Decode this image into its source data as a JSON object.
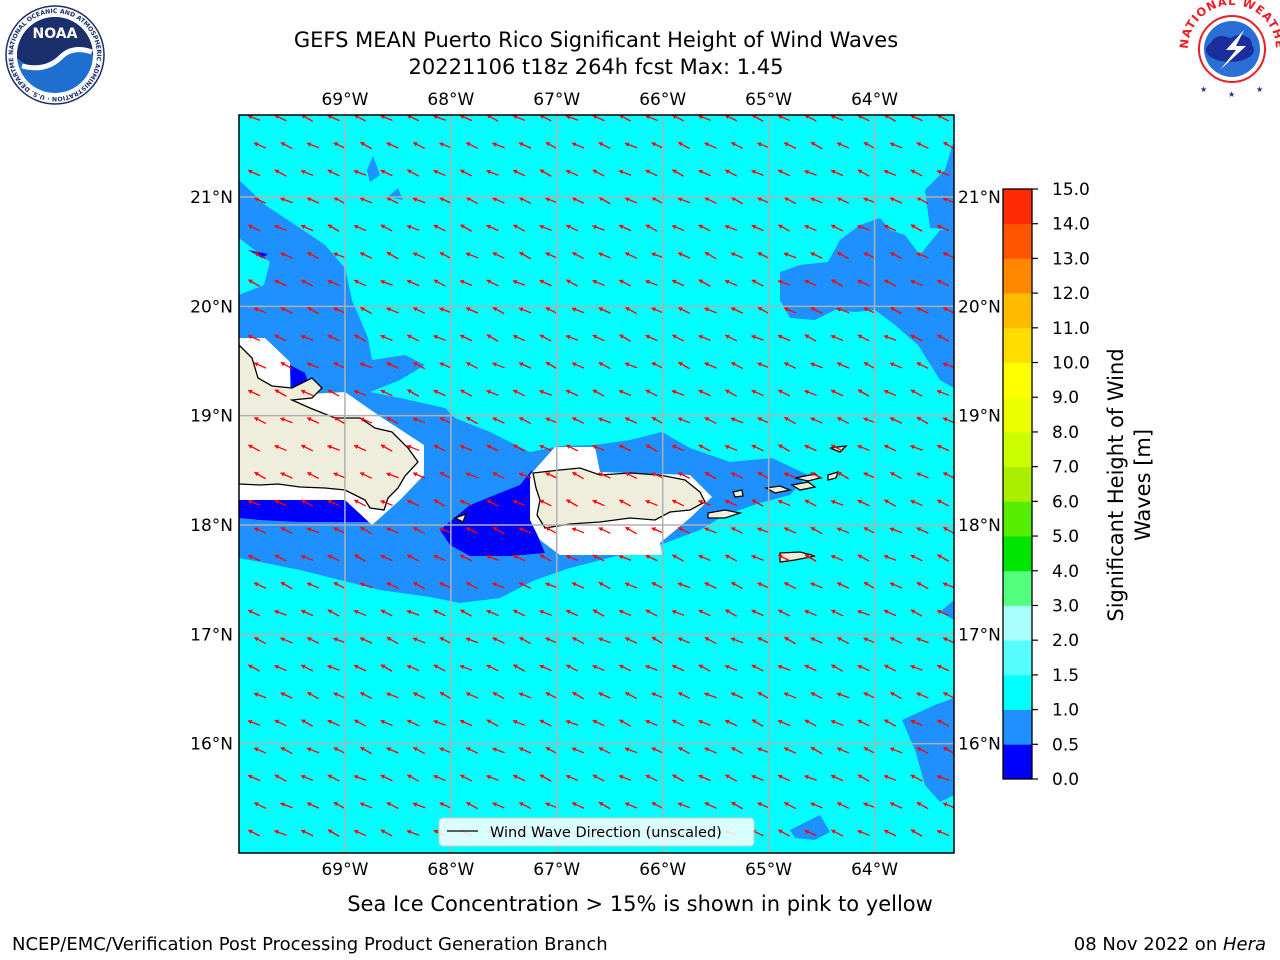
{
  "title": {
    "line1": "GEFS MEAN Puerto Rico Significant Height of Wind Waves",
    "line2": "20221106 t18z 264h fcst   Max: 1.45"
  },
  "map": {
    "lon_range": [
      -70.0,
      -63.25
    ],
    "lat_range": [
      15.0,
      21.75
    ],
    "lon_ticks": [
      {
        "value": -69,
        "label": "69°W"
      },
      {
        "value": -68,
        "label": "68°W"
      },
      {
        "value": -67,
        "label": "67°W"
      },
      {
        "value": -66,
        "label": "66°W"
      },
      {
        "value": -65,
        "label": "65°W"
      },
      {
        "value": -64,
        "label": "64°W"
      }
    ],
    "lat_ticks": [
      {
        "value": 21,
        "label": "21°N"
      },
      {
        "value": 20,
        "label": "20°N"
      },
      {
        "value": 19,
        "label": "19°N"
      },
      {
        "value": 18,
        "label": "18°N"
      },
      {
        "value": 17,
        "label": "17°N"
      },
      {
        "value": 16,
        "label": "16°N"
      }
    ],
    "grid": true,
    "arrow_color": "#ff0000",
    "wave_direction_note": "predominantly toward the southwest",
    "colors": {
      "land": "#efeedd",
      "ocean_base": "#00ffff",
      "band_0_5_1_0": "#1e90ff",
      "band_0_0_0_5": "#0000ff"
    }
  },
  "legend": {
    "label": "Wind Wave Direction (unscaled)",
    "location": "lower center"
  },
  "colorbar": {
    "label_line1": "Significant Height of Wind",
    "label_line2": "Waves [m]",
    "levels": [
      0.0,
      0.5,
      1.0,
      1.5,
      2.0,
      3.0,
      4.0,
      5.0,
      6.0,
      7.0,
      8.0,
      9.0,
      10.0,
      11.0,
      12.0,
      13.0,
      14.0,
      15.0
    ],
    "tick_labels": [
      "0.0",
      "0.5",
      "1.0",
      "1.5",
      "2.0",
      "3.0",
      "4.0",
      "5.0",
      "6.0",
      "7.0",
      "8.0",
      "9.0",
      "10.0",
      "11.0",
      "12.0",
      "13.0",
      "14.0",
      "15.0"
    ],
    "colors": [
      "#0000ff",
      "#1e90ff",
      "#00ffff",
      "#55ffff",
      "#aaffff",
      "#55ff80",
      "#00e600",
      "#55ee00",
      "#aaee00",
      "#ccff00",
      "#eeff00",
      "#ffff00",
      "#ffdd00",
      "#ffbb00",
      "#ff8800",
      "#ff5500",
      "#ff2a00"
    ]
  },
  "note": "Sea Ice Concentration > 15% is shown in pink to yellow",
  "footer": {
    "left": "NCEP/EMC/Verification Post Processing Product Generation Branch",
    "right_prefix": "08 Nov 2022 on ",
    "right_machine": "Hera"
  },
  "logos": {
    "noaa_text": "NOAA",
    "noaa_ring": "NATIONAL OCEANIC AND ATMOSPHERIC ADMINISTRATION · U.S. DEPARTMENT OF COMMERCE ·",
    "nws_ring": "NATIONAL WEATHER SERVICE"
  }
}
